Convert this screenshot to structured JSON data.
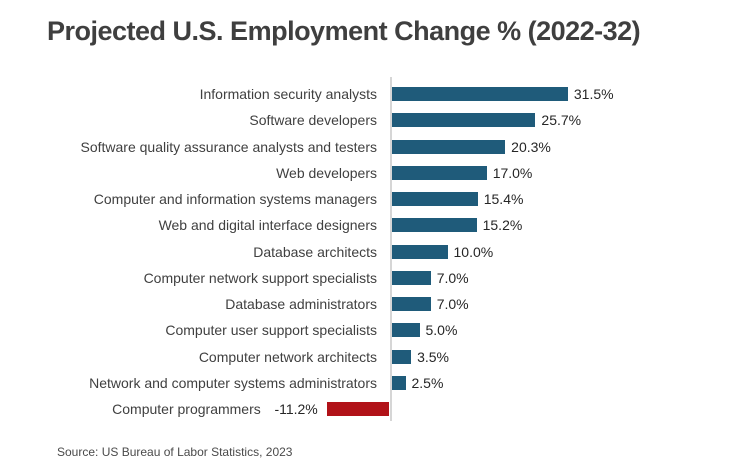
{
  "page": {
    "title": "Projected U.S. Employment Change % (2022-32)",
    "source_note": "Source: US Bureau of Labor Statistics, 2023"
  },
  "chart_data": {
    "type": "bar",
    "orientation": "horizontal",
    "title": "Projected U.S. Employment Change % (2022-32)",
    "categories": [
      "Information security analysts",
      "Software developers",
      "Software quality assurance analysts and testers",
      "Web developers",
      "Computer and information systems managers",
      "Web and digital interface designers",
      "Database architects",
      "Computer network support specialists",
      "Database administrators",
      "Computer user support specialists",
      "Computer network architects",
      "Network and computer systems administrators",
      "Computer programmers"
    ],
    "values": [
      31.5,
      25.7,
      20.3,
      17.0,
      15.4,
      15.2,
      10.0,
      7.0,
      7.0,
      5.0,
      3.5,
      2.5,
      -11.2
    ],
    "value_labels": [
      "31.5%",
      "25.7%",
      "20.3%",
      "17.0%",
      "15.4%",
      "15.2%",
      "10.0%",
      "7.0%",
      "7.0%",
      "5.0%",
      "3.5%",
      "2.5%",
      "-11.2%"
    ],
    "xlabel": "",
    "ylabel": "",
    "xlim": [
      -12,
      33
    ],
    "grid": false,
    "legend": false,
    "data_labels": true,
    "source": "Source: US Bureau of Labor Statistics, 2023",
    "colors": {
      "positive_bar": "#1F5B7A",
      "negative_bar": "#B11218",
      "axis_line": "#D6D6D6",
      "title_text": "#3F3F3F",
      "category_text": "#404040",
      "value_text": "#262626",
      "source_text": "#4A4A4A",
      "background": "#FFFFFF"
    }
  }
}
